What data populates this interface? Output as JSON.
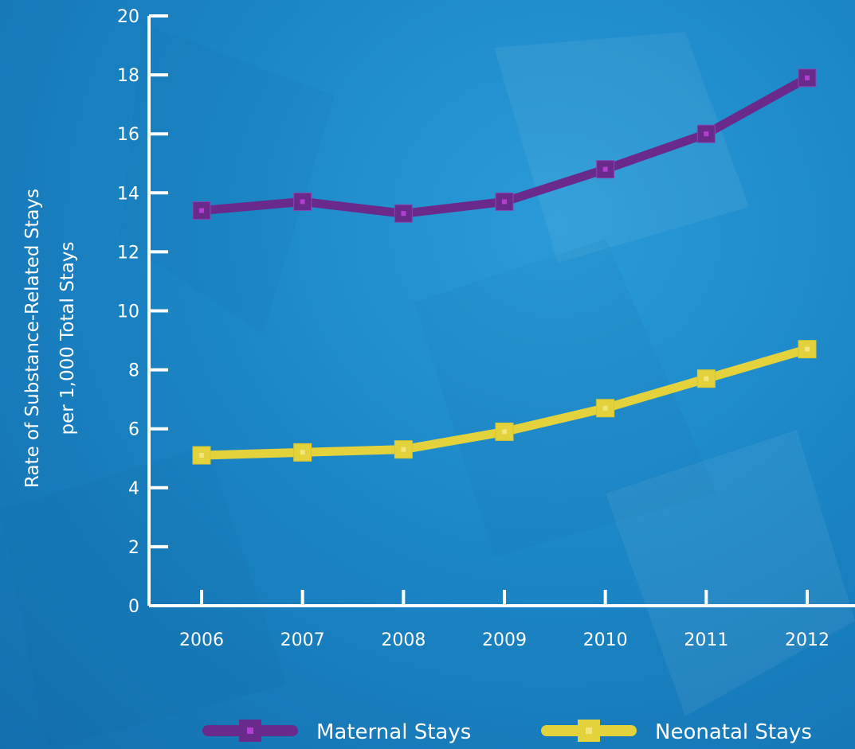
{
  "chart_data": {
    "type": "line",
    "title": "",
    "xlabel": "",
    "ylabel_lines": [
      "Rate of Substance-Related Stays",
      "per 1,000 Total Stays"
    ],
    "categories": [
      "2006",
      "2007",
      "2008",
      "2009",
      "2010",
      "2011",
      "2012"
    ],
    "ylim": [
      0,
      20
    ],
    "yticks": [
      0,
      2,
      4,
      6,
      8,
      10,
      12,
      14,
      16,
      18,
      20
    ],
    "grid": false,
    "legend_position": "bottom",
    "series": [
      {
        "name": "Maternal Stays",
        "color": "#6a2a8c",
        "marker_color": "#b33fd1",
        "values": [
          13.4,
          13.7,
          13.3,
          13.7,
          14.8,
          16.0,
          17.9
        ]
      },
      {
        "name": "Neonatal Stays",
        "color": "#e3d23c",
        "marker_color": "#f2e57a",
        "values": [
          5.1,
          5.2,
          5.3,
          5.9,
          6.7,
          7.7,
          8.7
        ]
      }
    ]
  }
}
